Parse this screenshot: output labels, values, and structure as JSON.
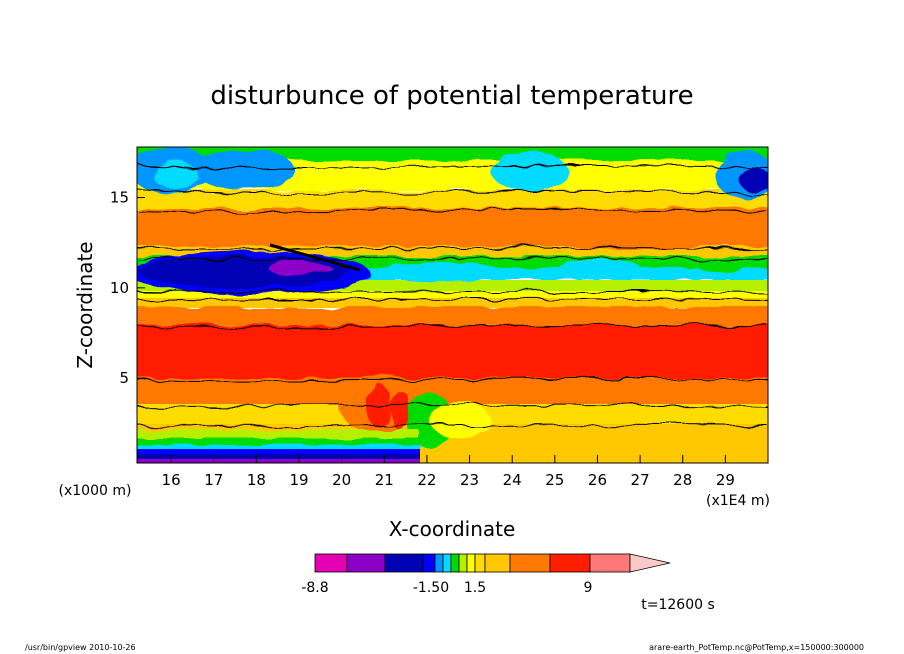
{
  "chart_data": {
    "type": "heatmap",
    "title": "disturbunce of potential temperature",
    "xlabel": "X-coordinate",
    "ylabel": "Z-coordinate",
    "x_unit": "(x1E4 m)",
    "y_unit": "(x1000 m)",
    "xlim": [
      15.2,
      30
    ],
    "ylim": [
      0.3,
      17.8
    ],
    "x_ticks": [
      16,
      17,
      18,
      19,
      20,
      21,
      22,
      23,
      24,
      25,
      26,
      27,
      28,
      29
    ],
    "y_ticks": [
      5,
      10,
      15
    ],
    "colorbar": {
      "labels": [
        "-8.8",
        "-1.50",
        "1.5",
        "9"
      ],
      "colors": [
        "#e600b4",
        "#8c00c8",
        "#0000b4",
        "#0000ff",
        "#0096ff",
        "#00dcff",
        "#00dc00",
        "#b4f000",
        "#ffff00",
        "#ffdc00",
        "#ffc800",
        "#ff7800",
        "#ff1e00",
        "#ff7878",
        "#ffc8c8"
      ]
    },
    "time_label": "t=12600 s"
  },
  "footer": {
    "left": "/usr/bin/gpview   2010-10-26",
    "right": "arare-earth_PotTemp.nc@PotTemp,x=150000:300000"
  }
}
